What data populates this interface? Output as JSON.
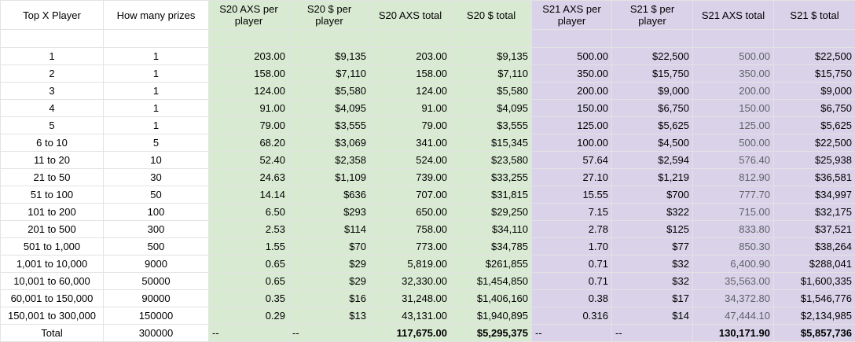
{
  "headers": {
    "top_x_player": "Top X Player",
    "how_many_prizes": "How many prizes",
    "s20_axs_per_player": "S20 AXS per player",
    "s20_usd_per_player": "S20 $ per player",
    "s20_axs_total": "S20 AXS total",
    "s20_usd_total": "S20 $ total",
    "s21_axs_per_player": "S21 AXS per player",
    "s21_usd_per_player": "S21 $ per player",
    "s21_axs_total": "S21 AXS total",
    "s21_usd_total": "S21 $ total"
  },
  "rows": [
    {
      "rank": "1",
      "prizes": "1",
      "s20_axs_pp": "203.00",
      "s20_usd_pp": "$9,135",
      "s20_axs_total": "203.00",
      "s20_usd_total": "$9,135",
      "s21_axs_pp": "500.00",
      "s21_usd_pp": "$22,500",
      "s21_axs_total": "500.00",
      "s21_usd_total": "$22,500"
    },
    {
      "rank": "2",
      "prizes": "1",
      "s20_axs_pp": "158.00",
      "s20_usd_pp": "$7,110",
      "s20_axs_total": "158.00",
      "s20_usd_total": "$7,110",
      "s21_axs_pp": "350.00",
      "s21_usd_pp": "$15,750",
      "s21_axs_total": "350.00",
      "s21_usd_total": "$15,750"
    },
    {
      "rank": "3",
      "prizes": "1",
      "s20_axs_pp": "124.00",
      "s20_usd_pp": "$5,580",
      "s20_axs_total": "124.00",
      "s20_usd_total": "$5,580",
      "s21_axs_pp": "200.00",
      "s21_usd_pp": "$9,000",
      "s21_axs_total": "200.00",
      "s21_usd_total": "$9,000"
    },
    {
      "rank": "4",
      "prizes": "1",
      "s20_axs_pp": "91.00",
      "s20_usd_pp": "$4,095",
      "s20_axs_total": "91.00",
      "s20_usd_total": "$4,095",
      "s21_axs_pp": "150.00",
      "s21_usd_pp": "$6,750",
      "s21_axs_total": "150.00",
      "s21_usd_total": "$6,750"
    },
    {
      "rank": "5",
      "prizes": "1",
      "s20_axs_pp": "79.00",
      "s20_usd_pp": "$3,555",
      "s20_axs_total": "79.00",
      "s20_usd_total": "$3,555",
      "s21_axs_pp": "125.00",
      "s21_usd_pp": "$5,625",
      "s21_axs_total": "125.00",
      "s21_usd_total": "$5,625"
    },
    {
      "rank": "6 to 10",
      "prizes": "5",
      "s20_axs_pp": "68.20",
      "s20_usd_pp": "$3,069",
      "s20_axs_total": "341.00",
      "s20_usd_total": "$15,345",
      "s21_axs_pp": "100.00",
      "s21_usd_pp": "$4,500",
      "s21_axs_total": "500.00",
      "s21_usd_total": "$22,500"
    },
    {
      "rank": "11 to 20",
      "prizes": "10",
      "s20_axs_pp": "52.40",
      "s20_usd_pp": "$2,358",
      "s20_axs_total": "524.00",
      "s20_usd_total": "$23,580",
      "s21_axs_pp": "57.64",
      "s21_usd_pp": "$2,594",
      "s21_axs_total": "576.40",
      "s21_usd_total": "$25,938"
    },
    {
      "rank": "21 to 50",
      "prizes": "30",
      "s20_axs_pp": "24.63",
      "s20_usd_pp": "$1,109",
      "s20_axs_total": "739.00",
      "s20_usd_total": "$33,255",
      "s21_axs_pp": "27.10",
      "s21_usd_pp": "$1,219",
      "s21_axs_total": "812.90",
      "s21_usd_total": "$36,581"
    },
    {
      "rank": "51 to 100",
      "prizes": "50",
      "s20_axs_pp": "14.14",
      "s20_usd_pp": "$636",
      "s20_axs_total": "707.00",
      "s20_usd_total": "$31,815",
      "s21_axs_pp": "15.55",
      "s21_usd_pp": "$700",
      "s21_axs_total": "777.70",
      "s21_usd_total": "$34,997"
    },
    {
      "rank": "101 to 200",
      "prizes": "100",
      "s20_axs_pp": "6.50",
      "s20_usd_pp": "$293",
      "s20_axs_total": "650.00",
      "s20_usd_total": "$29,250",
      "s21_axs_pp": "7.15",
      "s21_usd_pp": "$322",
      "s21_axs_total": "715.00",
      "s21_usd_total": "$32,175"
    },
    {
      "rank": "201 to 500",
      "prizes": "300",
      "s20_axs_pp": "2.53",
      "s20_usd_pp": "$114",
      "s20_axs_total": "758.00",
      "s20_usd_total": "$34,110",
      "s21_axs_pp": "2.78",
      "s21_usd_pp": "$125",
      "s21_axs_total": "833.80",
      "s21_usd_total": "$37,521"
    },
    {
      "rank": "501 to 1,000",
      "prizes": "500",
      "s20_axs_pp": "1.55",
      "s20_usd_pp": "$70",
      "s20_axs_total": "773.00",
      "s20_usd_total": "$34,785",
      "s21_axs_pp": "1.70",
      "s21_usd_pp": "$77",
      "s21_axs_total": "850.30",
      "s21_usd_total": "$38,264"
    },
    {
      "rank": "1,001 to 10,000",
      "prizes": "9000",
      "s20_axs_pp": "0.65",
      "s20_usd_pp": "$29",
      "s20_axs_total": "5,819.00",
      "s20_usd_total": "$261,855",
      "s21_axs_pp": "0.71",
      "s21_usd_pp": "$32",
      "s21_axs_total": "6,400.90",
      "s21_usd_total": "$288,041"
    },
    {
      "rank": "10,001 to 60,000",
      "prizes": "50000",
      "s20_axs_pp": "0.65",
      "s20_usd_pp": "$29",
      "s20_axs_total": "32,330.00",
      "s20_usd_total": "$1,454,850",
      "s21_axs_pp": "0.71",
      "s21_usd_pp": "$32",
      "s21_axs_total": "35,563.00",
      "s21_usd_total": "$1,600,335"
    },
    {
      "rank": "60,001 to 150,000",
      "prizes": "90000",
      "s20_axs_pp": "0.35",
      "s20_usd_pp": "$16",
      "s20_axs_total": "31,248.00",
      "s20_usd_total": "$1,406,160",
      "s21_axs_pp": "0.38",
      "s21_usd_pp": "$17",
      "s21_axs_total": "34,372.80",
      "s21_usd_total": "$1,546,776"
    },
    {
      "rank": "150,001 to 300,000",
      "prizes": "150000",
      "s20_axs_pp": "0.29",
      "s20_usd_pp": "$13",
      "s20_axs_total": "43,131.00",
      "s20_usd_total": "$1,940,895",
      "s21_axs_pp": "0.316",
      "s21_usd_pp": "$14",
      "s21_axs_total": "47,444.10",
      "s21_usd_total": "$2,134,985"
    }
  ],
  "total": {
    "label": "Total",
    "prizes": "300000",
    "s20_axs_pp": "--",
    "s20_usd_pp": "--",
    "s20_axs_total": "117,675.00",
    "s20_usd_total": "$5,295,375",
    "s21_axs_pp": "--",
    "s21_usd_pp": "--",
    "s21_axs_total": "130,171.90",
    "s21_usd_total": "$5,857,736"
  }
}
